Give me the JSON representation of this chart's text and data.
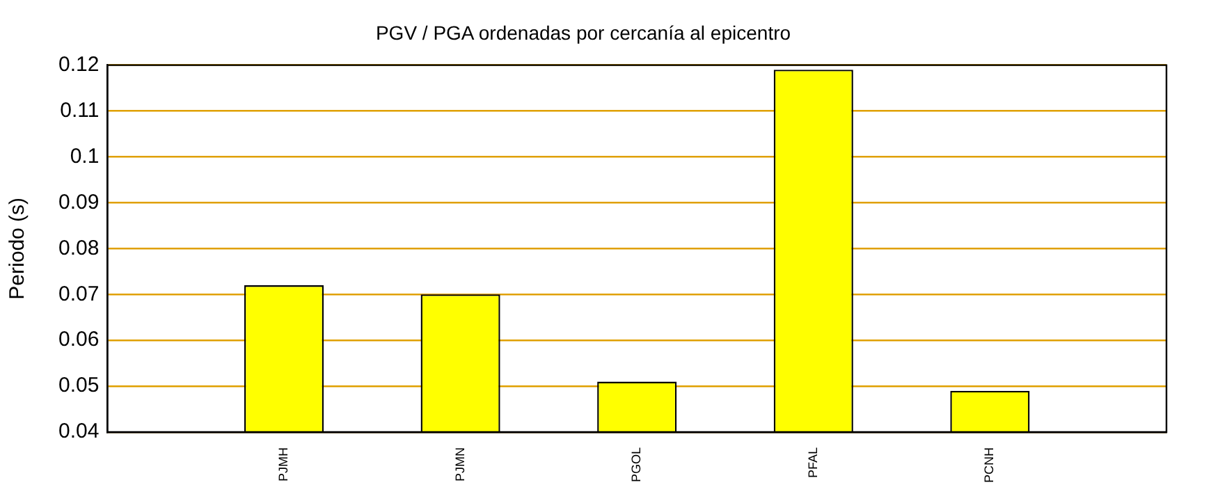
{
  "chart_data": {
    "type": "bar",
    "title": "PGV / PGA ordenadas por cercanía al epicentro",
    "ylabel": "Periodo (s)",
    "categories": [
      "PJMH",
      "PJMN",
      "PGOL",
      "PFAL",
      "PCNH"
    ],
    "values": [
      0.072,
      0.07,
      0.051,
      0.119,
      0.049
    ],
    "color": "#ffff00",
    "ylim": [
      0.04,
      0.12
    ],
    "yticks": [
      0.04,
      0.05,
      0.06,
      0.07,
      0.08,
      0.09,
      0.1,
      0.11,
      0.12
    ],
    "grid": "y",
    "legend": false
  }
}
